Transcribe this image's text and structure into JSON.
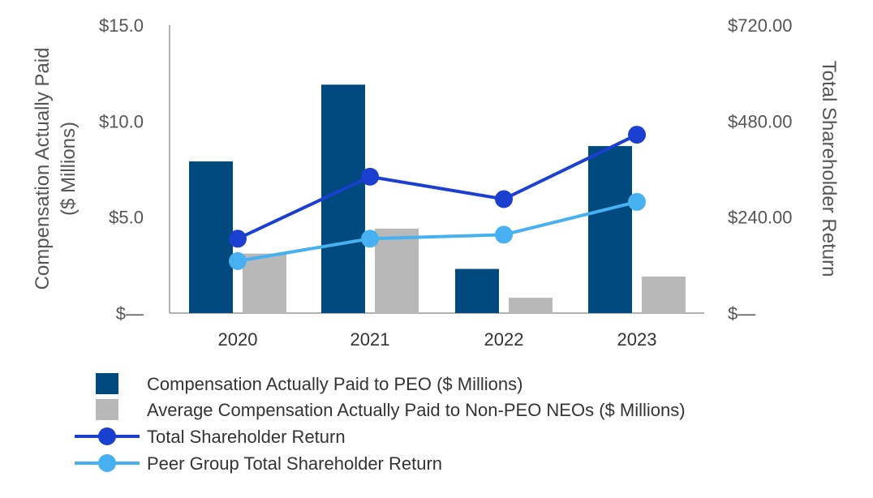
{
  "chart_data": {
    "type": "bar",
    "categories": [
      "2020",
      "2021",
      "2022",
      "2023"
    ],
    "series": [
      {
        "name": "Compensation Actually Paid to PEO ($ Millions)",
        "kind": "bar",
        "axis": "left",
        "color": "#004a80",
        "values": [
          7.9,
          11.9,
          2.3,
          8.7
        ]
      },
      {
        "name": "Average Compensation Actually Paid to Non-PEO NEOs ($ Millions)",
        "kind": "bar",
        "axis": "left",
        "color": "#b8b8b8",
        "values": [
          3.1,
          4.4,
          0.8,
          1.9
        ]
      },
      {
        "name": "Total Shareholder Return",
        "kind": "line",
        "axis": "right",
        "color": "#1a3fd1",
        "values": [
          186,
          341,
          285,
          446
        ]
      },
      {
        "name": "Peer Group Total Shareholder Return",
        "kind": "line",
        "axis": "right",
        "color": "#46b0f0",
        "values": [
          130,
          186,
          196,
          278
        ]
      }
    ],
    "left_axis": {
      "title_line1": "Compensation Actually Paid",
      "title_line2": "($ Millions)",
      "ylim": [
        0,
        15
      ],
      "ticks": [
        0,
        5,
        10,
        15
      ],
      "tick_labels": [
        "$—",
        "$5.0",
        "$10.0",
        "$15.0"
      ]
    },
    "right_axis": {
      "title": "Total Shareholder Return",
      "ylim": [
        0,
        720
      ],
      "ticks": [
        0,
        240,
        480,
        720
      ],
      "tick_labels": [
        "$—",
        "$240.00",
        "$480.00",
        "$720.00"
      ]
    },
    "legend": {
      "position": "bottom-left",
      "entries": [
        "Compensation Actually Paid to PEO ($ Millions)",
        "Average Compensation Actually Paid to Non-PEO NEOs ($ Millions)",
        "Total Shareholder Return",
        "Peer Group Total Shareholder Return"
      ]
    }
  }
}
